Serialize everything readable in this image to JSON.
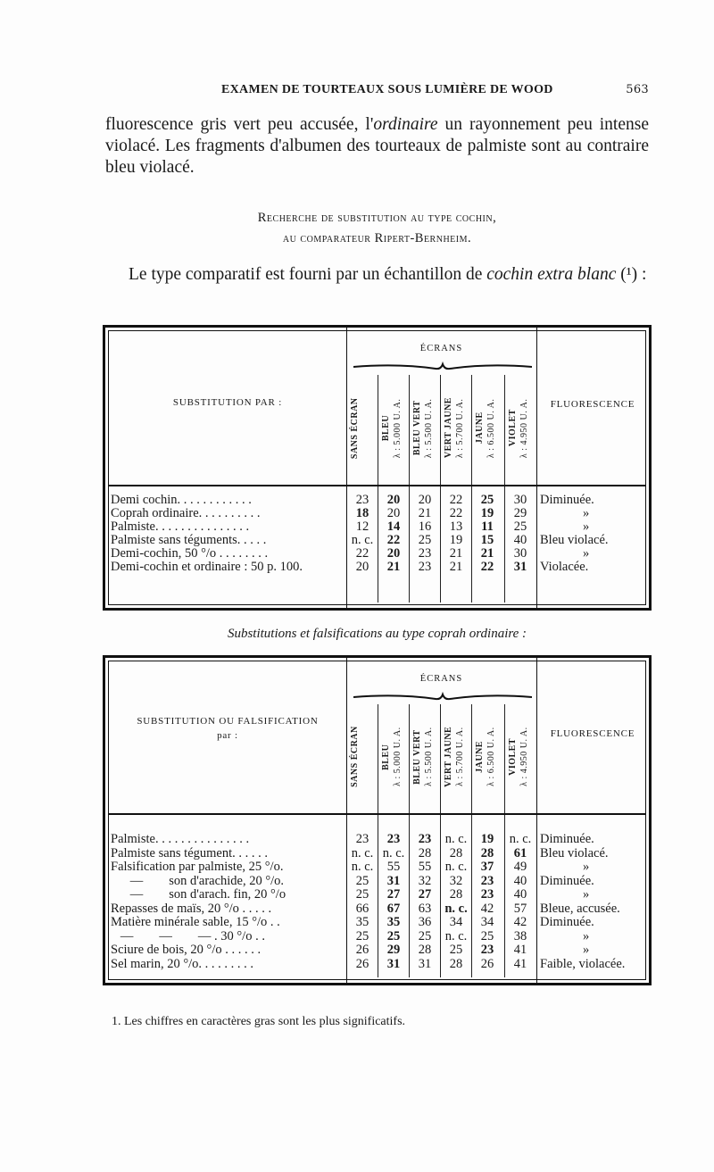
{
  "running_head": {
    "title": "EXAMEN DE TOURTEAUX SOUS LUMIÈRE DE WOOD",
    "page_number": "563"
  },
  "intro_paragraph": {
    "part1": "fluorescence gris vert peu accusée, l'",
    "italic": "ordinaire",
    "part2": " un rayonnement peu intense violacé. Les fragments d'albumen des tourteaux de palmiste sont au contraire bleu violacé."
  },
  "section_heading": {
    "line1": "Recherche de substitution au type cochin,",
    "line2": "au comparateur Ripert-Bernheim."
  },
  "comparative_paragraph": {
    "part1": "Le type comparatif est fourni par un échantillon de ",
    "italic": "cochin extra blanc",
    "note": " (¹) :"
  },
  "screens_header": "ÉCRANS",
  "fluorescence_header": "FLUORESCENCE",
  "screens": [
    {
      "name": "SANS ÉCRAN",
      "wavelength": ""
    },
    {
      "name": "BLEU",
      "wavelength": "λ : 5.000 U. A."
    },
    {
      "name": "BLEU VERT",
      "wavelength": "λ : 5.500 U. A."
    },
    {
      "name": "VERT JAUNE",
      "wavelength": "λ : 5.700 U. A."
    },
    {
      "name": "JAUNE",
      "wavelength": "λ : 6.500 U. A."
    },
    {
      "name": "VIOLET",
      "wavelength": "λ : 4.950 U. A."
    }
  ],
  "table1": {
    "label_header": "SUBSTITUTION PAR :",
    "rows": [
      {
        "label": "Demi cochin. . . . . . . . . . . .",
        "values": [
          "23",
          "20",
          "20",
          "22",
          "25",
          "30"
        ],
        "bold": [
          1,
          4
        ],
        "fluorescence": "Diminuée."
      },
      {
        "label": "Coprah ordinaire. . . . . . . . . .",
        "values": [
          "18",
          "20",
          "21",
          "22",
          "19",
          "29"
        ],
        "bold": [
          0,
          4
        ],
        "fluorescence": "»"
      },
      {
        "label": "Palmiste. . . . . . . . . . . . . . .",
        "values": [
          "12",
          "14",
          "16",
          "13",
          "11",
          "25"
        ],
        "bold": [
          1,
          4
        ],
        "fluorescence": "»"
      },
      {
        "label": "Palmiste sans téguments. . . . .",
        "values": [
          "n. c.",
          "22",
          "25",
          "19",
          "15",
          "40"
        ],
        "bold": [
          1,
          4
        ],
        "fluorescence": "Bleu violacé."
      },
      {
        "label": "Demi-cochin, 50 °/o . . . . . . . .",
        "values": [
          "22",
          "20",
          "23",
          "21",
          "21",
          "30"
        ],
        "bold": [
          1,
          4
        ],
        "fluorescence": "»"
      },
      {
        "label": "Demi-cochin et ordinaire : 50 p. 100.",
        "values": [
          "20",
          "21",
          "23",
          "21",
          "22",
          "31"
        ],
        "bold": [
          1,
          4,
          5
        ],
        "fluorescence": "Violacée."
      }
    ]
  },
  "table2_caption": "Substitutions et falsifications au type coprah ordinaire :",
  "table2": {
    "label_header_line1": "SUBSTITUTION OU FALSIFICATION",
    "label_header_line2": "par :",
    "rows": [
      {
        "label": "Palmiste. . . . . . . . . . . . . . .",
        "values": [
          "23",
          "23",
          "23",
          "n. c.",
          "19",
          "n. c."
        ],
        "bold": [
          1,
          2,
          4
        ],
        "fluorescence": "Diminuée."
      },
      {
        "label": "Palmiste sans tégument. . . . . .",
        "values": [
          "n. c.",
          "n. c.",
          "28",
          "28",
          "28",
          "61"
        ],
        "bold": [
          4,
          5
        ],
        "fluorescence": "Bleu violacé."
      },
      {
        "label": "Falsification par palmiste, 25 °/o.",
        "values": [
          "n. c.",
          "55",
          "55",
          "n. c.",
          "37",
          "49"
        ],
        "bold": [
          4
        ],
        "fluorescence": "»"
      },
      {
        "label": "      —        son d'arachide, 20 °/o.",
        "values": [
          "25",
          "31",
          "32",
          "32",
          "23",
          "40"
        ],
        "bold": [
          1,
          4
        ],
        "fluorescence": "Diminuée."
      },
      {
        "label": "      —        son d'arach. fin, 20 °/o",
        "values": [
          "25",
          "27",
          "27",
          "28",
          "23",
          "40"
        ],
        "bold": [
          1,
          2,
          4
        ],
        "fluorescence": "»"
      },
      {
        "label": "Repasses de maïs, 20 °/o . . . . .",
        "values": [
          "66",
          "67",
          "63",
          "n. c.",
          "42",
          "57"
        ],
        "bold": [
          1,
          3
        ],
        "fluorescence": "Bleue, accusée."
      },
      {
        "label": "Matière minérale sable, 15 °/o . .",
        "values": [
          "35",
          "35",
          "36",
          "34",
          "34",
          "42"
        ],
        "bold": [
          1
        ],
        "fluorescence": "Diminuée."
      },
      {
        "label": "   —        —        — . 30 °/o . .",
        "values": [
          "25",
          "25",
          "25",
          "n. c.",
          "25",
          "38"
        ],
        "bold": [
          1
        ],
        "fluorescence": "»"
      },
      {
        "label": "Sciure de bois, 20 °/o . . . . . .",
        "values": [
          "26",
          "29",
          "28",
          "25",
          "23",
          "41"
        ],
        "bold": [
          1,
          4
        ],
        "fluorescence": "»"
      },
      {
        "label": "Sel marin, 20 °/o. . . . . . . . .",
        "values": [
          "26",
          "31",
          "31",
          "28",
          "26",
          "41"
        ],
        "bold": [
          1
        ],
        "fluorescence": "Faible, violacée."
      }
    ]
  },
  "footnote": "1. Les chiffres en caractères gras sont les plus significatifs."
}
